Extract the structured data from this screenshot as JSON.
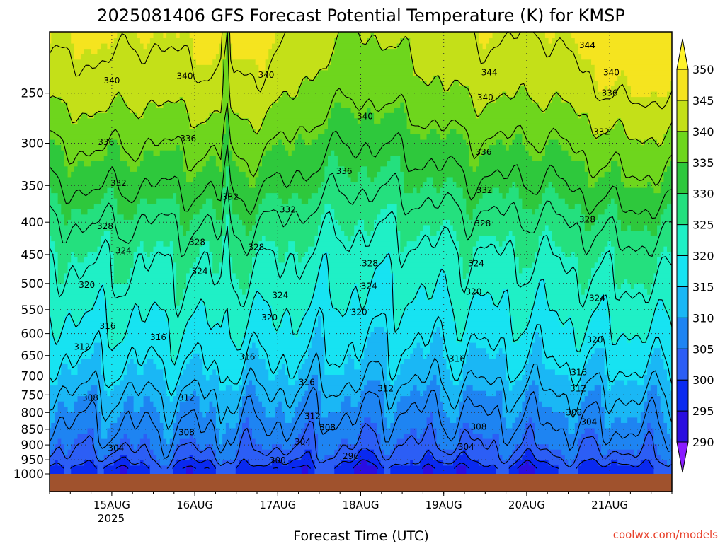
{
  "chart_data": {
    "type": "heatmap",
    "title": "2025081406 GFS Forecast Potential Temperature (K) for KMSP",
    "xlabel": "Forecast Time (UTC)",
    "ylabel": "",
    "credit": "coolwx.com/models",
    "x_tick_labels": [
      "15AUG",
      "16AUG",
      "17AUG",
      "18AUG",
      "19AUG",
      "20AUG",
      "21AUG"
    ],
    "x_year_label": "2025",
    "x_start_day": 14.25,
    "x_end_day": 21.75,
    "y_scale": "log",
    "y_range": [
      1000,
      200
    ],
    "y_ticks": [
      250,
      300,
      350,
      400,
      450,
      500,
      550,
      600,
      650,
      700,
      750,
      800,
      850,
      900,
      950,
      1000
    ],
    "colorbar_levels": [
      290,
      295,
      300,
      305,
      310,
      315,
      320,
      325,
      330,
      335,
      340,
      345,
      350
    ],
    "colorbar_colors": [
      "#8a1cff",
      "#2a0de0",
      "#0a2af0",
      "#2c5ef5",
      "#1e84f2",
      "#1ab7f5",
      "#17e3f2",
      "#1ff0c6",
      "#24e07e",
      "#2ec83c",
      "#6ed61d",
      "#c4e018",
      "#f5e41f",
      "#fff32a"
    ],
    "ground_color": "#a0522d",
    "surface_pressure": 980,
    "theta_profile_ref": [
      {
        "p": 990,
        "theta": 297
      },
      {
        "p": 950,
        "theta": 302
      },
      {
        "p": 900,
        "theta": 305
      },
      {
        "p": 850,
        "theta": 307
      },
      {
        "p": 800,
        "theta": 309
      },
      {
        "p": 750,
        "theta": 311
      },
      {
        "p": 700,
        "theta": 314
      },
      {
        "p": 650,
        "theta": 316
      },
      {
        "p": 600,
        "theta": 318
      },
      {
        "p": 550,
        "theta": 320
      },
      {
        "p": 500,
        "theta": 322
      },
      {
        "p": 450,
        "theta": 324
      },
      {
        "p": 400,
        "theta": 327
      },
      {
        "p": 350,
        "theta": 331
      },
      {
        "p": 300,
        "theta": 335
      },
      {
        "p": 250,
        "theta": 340
      },
      {
        "p": 210,
        "theta": 343
      }
    ],
    "contour_levels": [
      296,
      300,
      304,
      308,
      312,
      316,
      320,
      324,
      328,
      332,
      336,
      340,
      344
    ],
    "contour_labels": [
      {
        "text": "344",
        "day": 20.73,
        "p": 210
      },
      {
        "text": "344",
        "day": 19.55,
        "p": 232
      },
      {
        "text": "340",
        "day": 15.0,
        "p": 239
      },
      {
        "text": "340",
        "day": 15.88,
        "p": 235
      },
      {
        "text": "340",
        "day": 16.86,
        "p": 234
      },
      {
        "text": "340",
        "day": 18.05,
        "p": 272
      },
      {
        "text": "340",
        "day": 19.5,
        "p": 254
      },
      {
        "text": "340",
        "day": 21.02,
        "p": 232
      },
      {
        "text": "336",
        "day": 14.93,
        "p": 299
      },
      {
        "text": "336",
        "day": 15.92,
        "p": 295
      },
      {
        "text": "336",
        "day": 17.8,
        "p": 332
      },
      {
        "text": "336",
        "day": 19.48,
        "p": 310
      },
      {
        "text": "336",
        "day": 21.0,
        "p": 250
      },
      {
        "text": "332",
        "day": 15.08,
        "p": 347
      },
      {
        "text": "332",
        "day": 16.43,
        "p": 365
      },
      {
        "text": "332",
        "day": 17.12,
        "p": 382
      },
      {
        "text": "332",
        "day": 19.49,
        "p": 356
      },
      {
        "text": "332",
        "day": 20.9,
        "p": 288
      },
      {
        "text": "328",
        "day": 14.92,
        "p": 406
      },
      {
        "text": "328",
        "day": 16.03,
        "p": 430
      },
      {
        "text": "328",
        "day": 16.74,
        "p": 438
      },
      {
        "text": "328",
        "day": 18.11,
        "p": 465
      },
      {
        "text": "328",
        "day": 19.47,
        "p": 402
      },
      {
        "text": "328",
        "day": 20.73,
        "p": 396
      },
      {
        "text": "324",
        "day": 15.14,
        "p": 444
      },
      {
        "text": "324",
        "day": 16.06,
        "p": 478
      },
      {
        "text": "324",
        "day": 17.03,
        "p": 522
      },
      {
        "text": "324",
        "day": 18.1,
        "p": 505
      },
      {
        "text": "324",
        "day": 19.39,
        "p": 465
      },
      {
        "text": "324",
        "day": 20.85,
        "p": 527
      },
      {
        "text": "320",
        "day": 14.7,
        "p": 503
      },
      {
        "text": "320",
        "day": 16.9,
        "p": 566
      },
      {
        "text": "320",
        "day": 17.98,
        "p": 555
      },
      {
        "text": "320",
        "day": 19.36,
        "p": 515
      },
      {
        "text": "320",
        "day": 20.82,
        "p": 614
      },
      {
        "text": "316",
        "day": 14.95,
        "p": 584
      },
      {
        "text": "316",
        "day": 15.56,
        "p": 608
      },
      {
        "text": "316",
        "day": 16.63,
        "p": 653
      },
      {
        "text": "316",
        "day": 17.35,
        "p": 716
      },
      {
        "text": "316",
        "day": 19.16,
        "p": 658
      },
      {
        "text": "316",
        "day": 20.63,
        "p": 691
      },
      {
        "text": "312",
        "day": 14.64,
        "p": 630
      },
      {
        "text": "312",
        "day": 15.9,
        "p": 758
      },
      {
        "text": "312",
        "day": 18.3,
        "p": 733
      },
      {
        "text": "312",
        "day": 20.62,
        "p": 733
      },
      {
        "text": "312",
        "day": 17.42,
        "p": 811
      },
      {
        "text": "308",
        "day": 14.74,
        "p": 758
      },
      {
        "text": "308",
        "day": 15.9,
        "p": 860
      },
      {
        "text": "308",
        "day": 17.6,
        "p": 845
      },
      {
        "text": "308",
        "day": 19.42,
        "p": 843
      },
      {
        "text": "308",
        "day": 20.57,
        "p": 800
      },
      {
        "text": "304",
        "day": 15.05,
        "p": 910
      },
      {
        "text": "304",
        "day": 17.3,
        "p": 891
      },
      {
        "text": "304",
        "day": 19.27,
        "p": 907
      },
      {
        "text": "304",
        "day": 20.75,
        "p": 828
      },
      {
        "text": "300",
        "day": 17.0,
        "p": 952
      },
      {
        "text": "296",
        "day": 17.88,
        "p": 938
      }
    ]
  }
}
